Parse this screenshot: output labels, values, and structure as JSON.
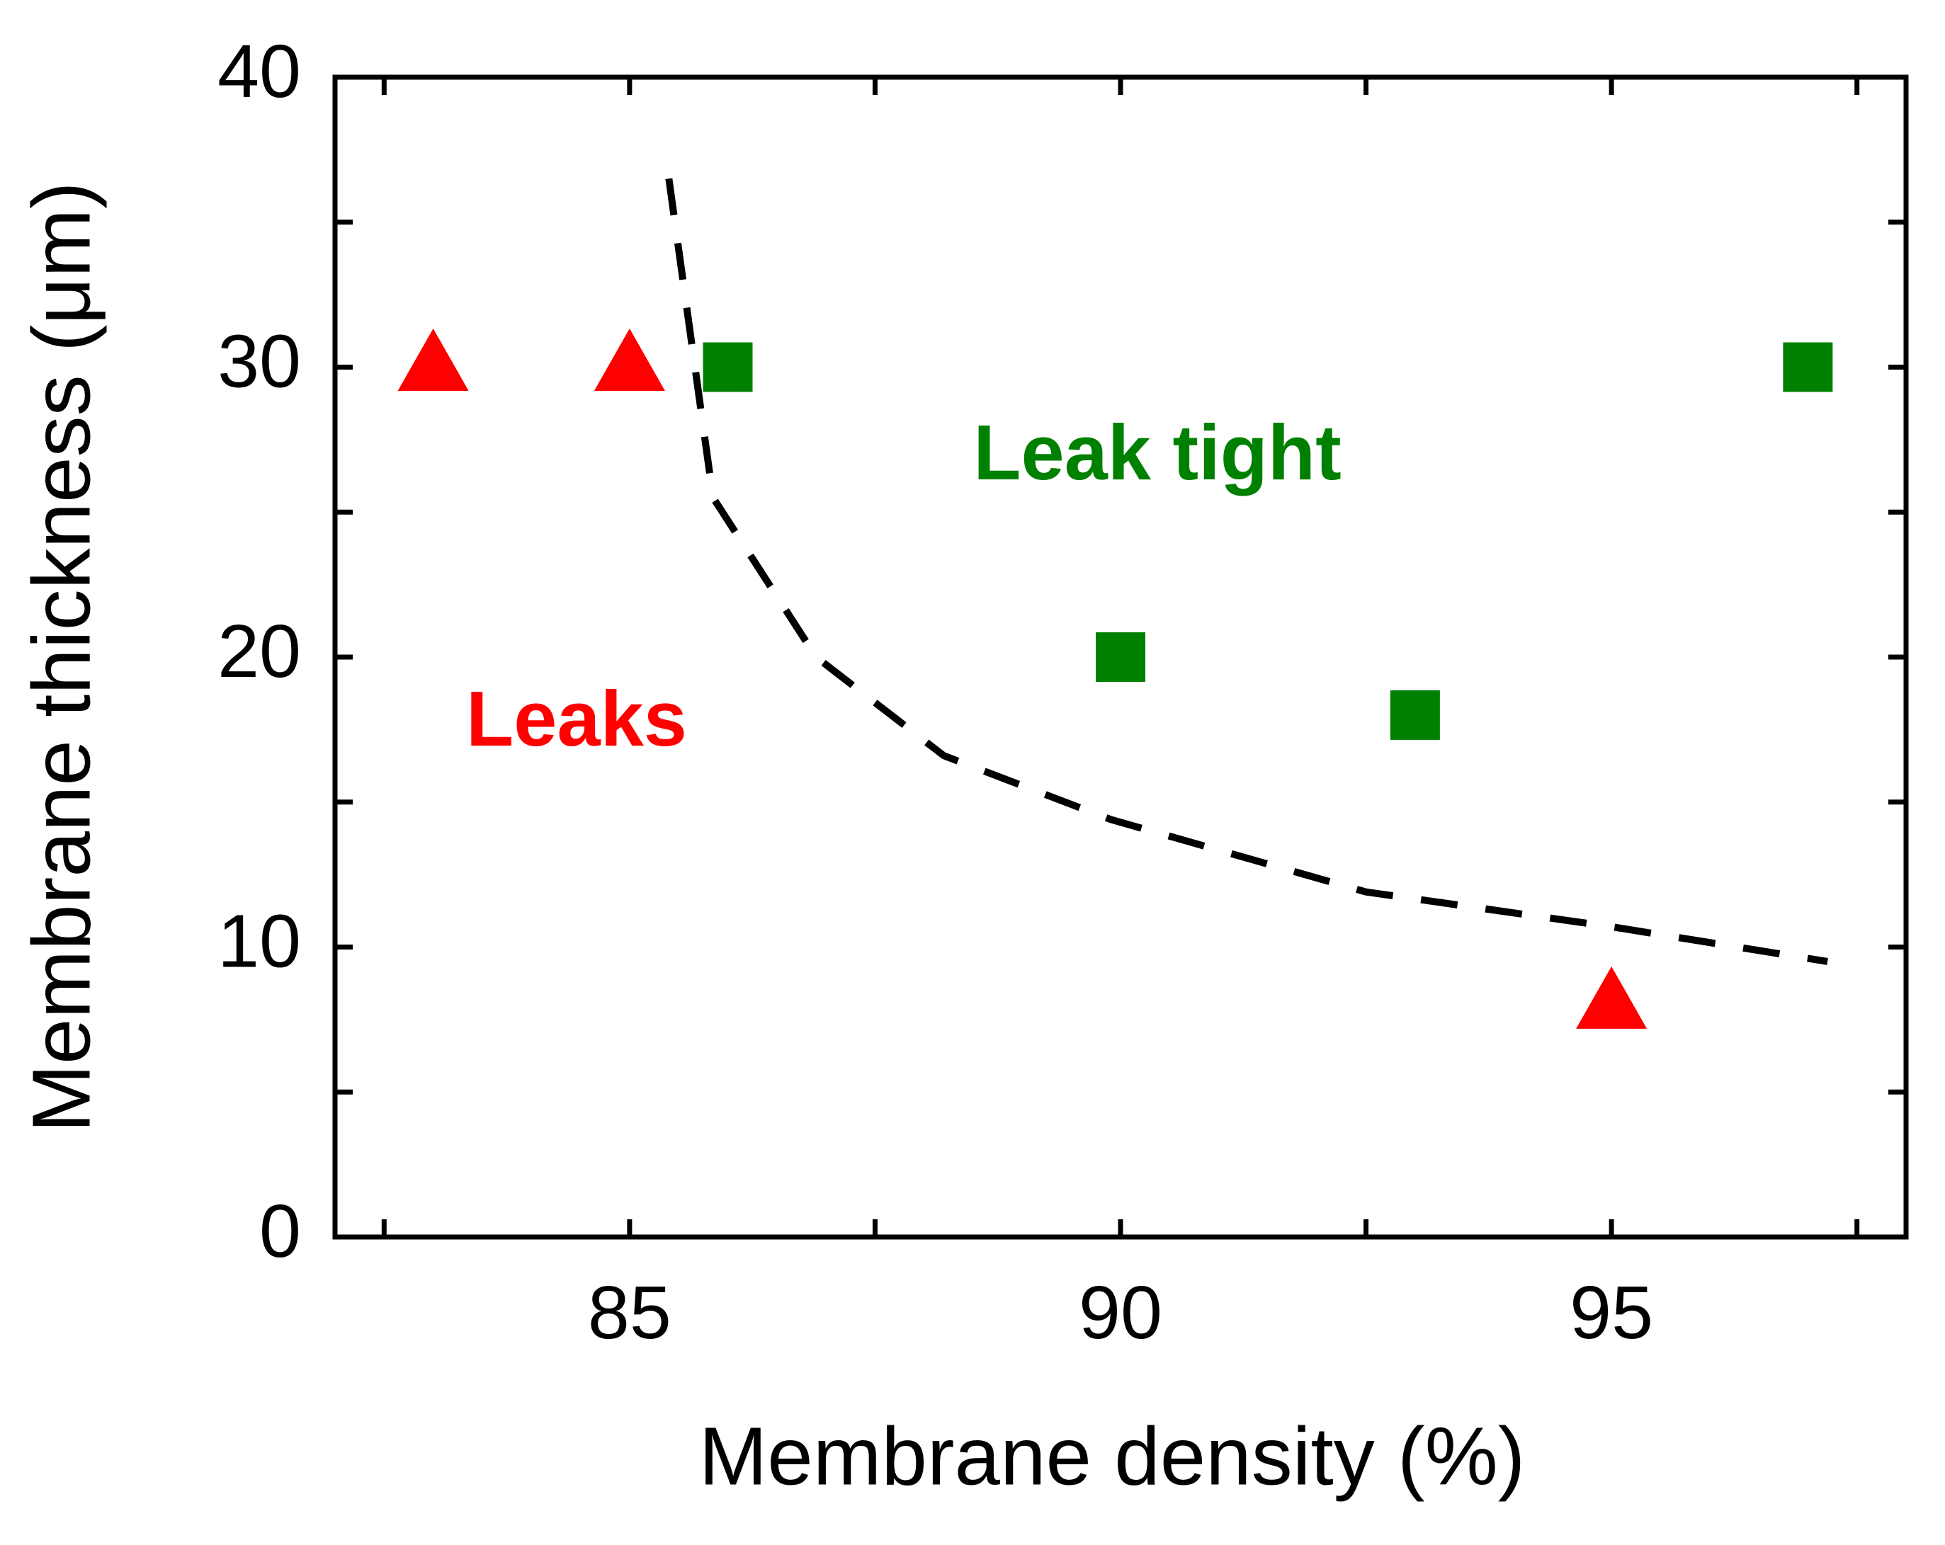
{
  "chart_data": {
    "type": "scatter",
    "xlabel": "Membrane density (%)",
    "ylabel": "Membrane thickness (μm)",
    "xlim": [
      82,
      98
    ],
    "xticks": [
      85,
      90,
      95
    ],
    "xminor_ticks": [
      82.5,
      87.5,
      92.5,
      97.5
    ],
    "ylim": [
      0,
      40
    ],
    "yticks": [
      0,
      10,
      20,
      30,
      40
    ],
    "yminor_ticks": [
      5,
      15,
      25,
      35
    ],
    "series": [
      {
        "marker": "triangle",
        "color": "#ff0000",
        "x": [
          83,
          85,
          95
        ],
        "values": [
          30,
          30,
          8
        ]
      },
      {
        "marker": "square",
        "color": "#008000",
        "x": [
          86,
          90,
          93,
          97
        ],
        "values": [
          30,
          20,
          18,
          30
        ]
      },
      {
        "marker": "dashed-line",
        "color": "#000000",
        "x": [
          85.4,
          85.85,
          86.9,
          88.2,
          89.9,
          92.5,
          95,
          97.2
        ],
        "values": [
          36.5,
          25.5,
          20,
          16.6,
          14.4,
          11.9,
          10.7,
          9.5
        ]
      }
    ],
    "annotations": [
      {
        "text": "Leak tight",
        "color": "#008000"
      },
      {
        "text": "Leaks",
        "color": "#ff0000"
      }
    ]
  }
}
